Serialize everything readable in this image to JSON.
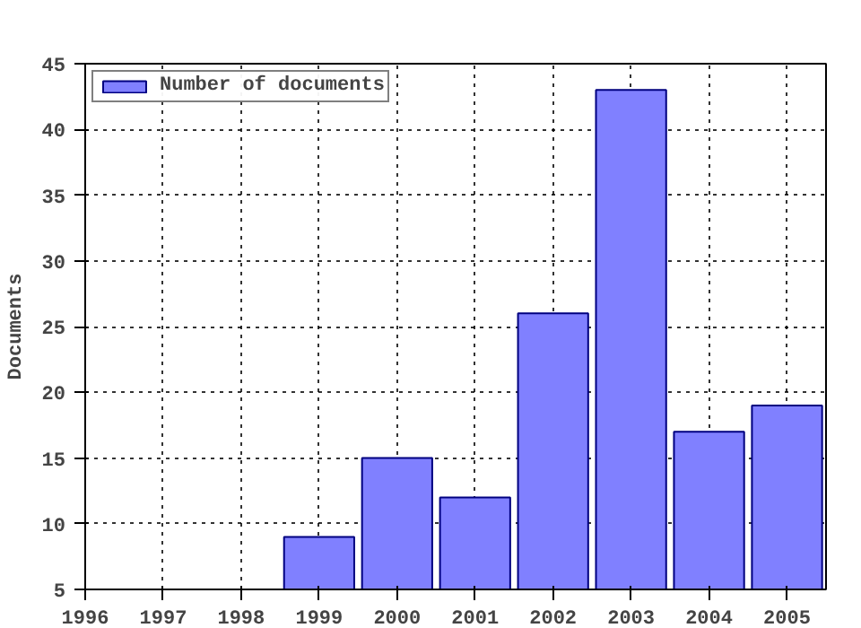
{
  "chart_data": {
    "type": "bar",
    "ylabel": "Documents",
    "x": [
      1999,
      2000,
      2001,
      2002,
      2003,
      2004,
      2005
    ],
    "series": [
      {
        "name": "Number of documents",
        "color": "#8080ff",
        "values": [
          9,
          15,
          12,
          26,
          43,
          17,
          19
        ]
      }
    ],
    "xlim": [
      1996,
      2005.5
    ],
    "xticks": [
      1996,
      1997,
      1998,
      1999,
      2000,
      2001,
      2002,
      2003,
      2004,
      2005
    ],
    "ylim": [
      5,
      45
    ],
    "yticks": [
      5,
      10,
      15,
      20,
      25,
      30,
      35,
      40,
      45
    ],
    "grid": true,
    "legend": "top left"
  }
}
